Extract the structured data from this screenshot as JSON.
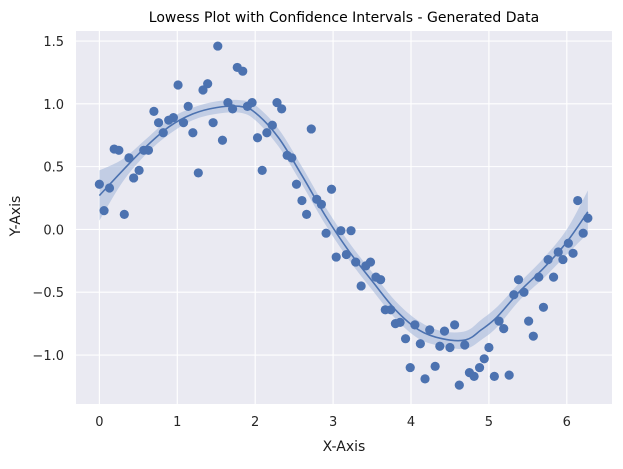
{
  "chart_data": {
    "type": "scatter",
    "title": "Lowess Plot with Confidence Intervals - Generated Data",
    "xlabel": "X-Axis",
    "ylabel": "Y-Axis",
    "xlim": [
      -0.3,
      6.58
    ],
    "ylim": [
      -1.39,
      1.58
    ],
    "xticks": [
      0,
      1,
      2,
      3,
      4,
      5,
      6
    ],
    "xtick_labels": [
      "0",
      "1",
      "2",
      "3",
      "4",
      "5",
      "6"
    ],
    "yticks": [
      -1.0,
      -0.5,
      0.0,
      0.5,
      1.0,
      1.5
    ],
    "ytick_labels": [
      "−1.0",
      "−0.5",
      "0.0",
      "0.5",
      "1.0",
      "1.5"
    ],
    "grid": true,
    "colors": {
      "background": "#eaeaf2",
      "grid": "#ffffff",
      "points": "#4c72b0",
      "line": "#4c72b0",
      "band": "#a1b4d8"
    },
    "scatter": {
      "name": "data",
      "points": [
        [
          0.0,
          0.36
        ],
        [
          0.06,
          0.15
        ],
        [
          0.13,
          0.33
        ],
        [
          0.19,
          0.64
        ],
        [
          0.25,
          0.63
        ],
        [
          0.32,
          0.12
        ],
        [
          0.38,
          0.57
        ],
        [
          0.44,
          0.41
        ],
        [
          0.51,
          0.47
        ],
        [
          0.57,
          0.63
        ],
        [
          0.63,
          0.63
        ],
        [
          0.7,
          0.94
        ],
        [
          0.76,
          0.85
        ],
        [
          0.82,
          0.77
        ],
        [
          0.89,
          0.87
        ],
        [
          0.95,
          0.89
        ],
        [
          1.01,
          1.15
        ],
        [
          1.08,
          0.85
        ],
        [
          1.14,
          0.98
        ],
        [
          1.2,
          0.77
        ],
        [
          1.27,
          0.45
        ],
        [
          1.33,
          1.11
        ],
        [
          1.39,
          1.16
        ],
        [
          1.46,
          0.85
        ],
        [
          1.52,
          1.46
        ],
        [
          1.58,
          0.71
        ],
        [
          1.65,
          1.01
        ],
        [
          1.71,
          0.96
        ],
        [
          1.77,
          1.29
        ],
        [
          1.84,
          1.26
        ],
        [
          1.9,
          0.98
        ],
        [
          1.96,
          1.01
        ],
        [
          2.03,
          0.73
        ],
        [
          2.09,
          0.47
        ],
        [
          2.15,
          0.77
        ],
        [
          2.22,
          0.83
        ],
        [
          2.28,
          1.01
        ],
        [
          2.34,
          0.96
        ],
        [
          2.41,
          0.59
        ],
        [
          2.47,
          0.57
        ],
        [
          2.53,
          0.36
        ],
        [
          2.6,
          0.23
        ],
        [
          2.66,
          0.12
        ],
        [
          2.72,
          0.8
        ],
        [
          2.79,
          0.24
        ],
        [
          2.85,
          0.2
        ],
        [
          2.91,
          -0.03
        ],
        [
          2.98,
          0.32
        ],
        [
          3.04,
          -0.22
        ],
        [
          3.1,
          -0.01
        ],
        [
          3.17,
          -0.2
        ],
        [
          3.23,
          -0.01
        ],
        [
          3.29,
          -0.26
        ],
        [
          3.36,
          -0.45
        ],
        [
          3.42,
          -0.29
        ],
        [
          3.48,
          -0.26
        ],
        [
          3.55,
          -0.38
        ],
        [
          3.61,
          -0.4
        ],
        [
          3.67,
          -0.64
        ],
        [
          3.74,
          -0.64
        ],
        [
          3.8,
          -0.75
        ],
        [
          3.86,
          -0.74
        ],
        [
          3.93,
          -0.87
        ],
        [
          3.99,
          -1.1
        ],
        [
          4.05,
          -0.76
        ],
        [
          4.12,
          -0.91
        ],
        [
          4.18,
          -1.19
        ],
        [
          4.24,
          -0.8
        ],
        [
          4.31,
          -1.09
        ],
        [
          4.37,
          -0.93
        ],
        [
          4.43,
          -0.81
        ],
        [
          4.5,
          -0.94
        ],
        [
          4.56,
          -0.76
        ],
        [
          4.62,
          -1.24
        ],
        [
          4.69,
          -0.92
        ],
        [
          4.75,
          -1.14
        ],
        [
          4.81,
          -1.17
        ],
        [
          4.88,
          -1.1
        ],
        [
          4.94,
          -1.03
        ],
        [
          5.0,
          -0.94
        ],
        [
          5.07,
          -1.17
        ],
        [
          5.13,
          -0.73
        ],
        [
          5.19,
          -0.79
        ],
        [
          5.26,
          -1.16
        ],
        [
          5.32,
          -0.52
        ],
        [
          5.38,
          -0.4
        ],
        [
          5.45,
          -0.5
        ],
        [
          5.51,
          -0.73
        ],
        [
          5.57,
          -0.85
        ],
        [
          5.64,
          -0.38
        ],
        [
          5.7,
          -0.62
        ],
        [
          5.76,
          -0.24
        ],
        [
          5.83,
          -0.38
        ],
        [
          5.89,
          -0.18
        ],
        [
          5.95,
          -0.24
        ],
        [
          6.02,
          -0.11
        ],
        [
          6.08,
          -0.19
        ],
        [
          6.14,
          0.23
        ],
        [
          6.21,
          -0.03
        ],
        [
          6.27,
          0.09
        ]
      ]
    },
    "lowess_line": {
      "name": "lowess",
      "x": [
        0.0,
        0.3,
        0.6,
        0.9,
        1.2,
        1.5,
        1.8,
        2.0,
        2.3,
        2.6,
        2.9,
        3.2,
        3.5,
        3.8,
        4.1,
        4.4,
        4.7,
        4.9,
        5.1,
        5.4,
        5.7,
        6.0,
        6.27
      ],
      "y": [
        0.27,
        0.47,
        0.66,
        0.82,
        0.92,
        0.97,
        0.98,
        0.93,
        0.73,
        0.43,
        0.11,
        -0.17,
        -0.41,
        -0.64,
        -0.8,
        -0.87,
        -0.88,
        -0.8,
        -0.7,
        -0.49,
        -0.31,
        -0.1,
        0.14
      ],
      "lower": [
        0.07,
        0.38,
        0.6,
        0.76,
        0.87,
        0.92,
        0.93,
        0.87,
        0.66,
        0.36,
        0.04,
        -0.24,
        -0.48,
        -0.71,
        -0.87,
        -0.93,
        -0.95,
        -0.88,
        -0.78,
        -0.56,
        -0.39,
        -0.2,
        -0.03
      ],
      "upper": [
        0.47,
        0.56,
        0.72,
        0.88,
        0.97,
        1.02,
        1.03,
        0.99,
        0.8,
        0.5,
        0.18,
        -0.1,
        -0.34,
        -0.57,
        -0.73,
        -0.81,
        -0.81,
        -0.72,
        -0.62,
        -0.42,
        -0.23,
        0.0,
        0.31
      ]
    }
  }
}
